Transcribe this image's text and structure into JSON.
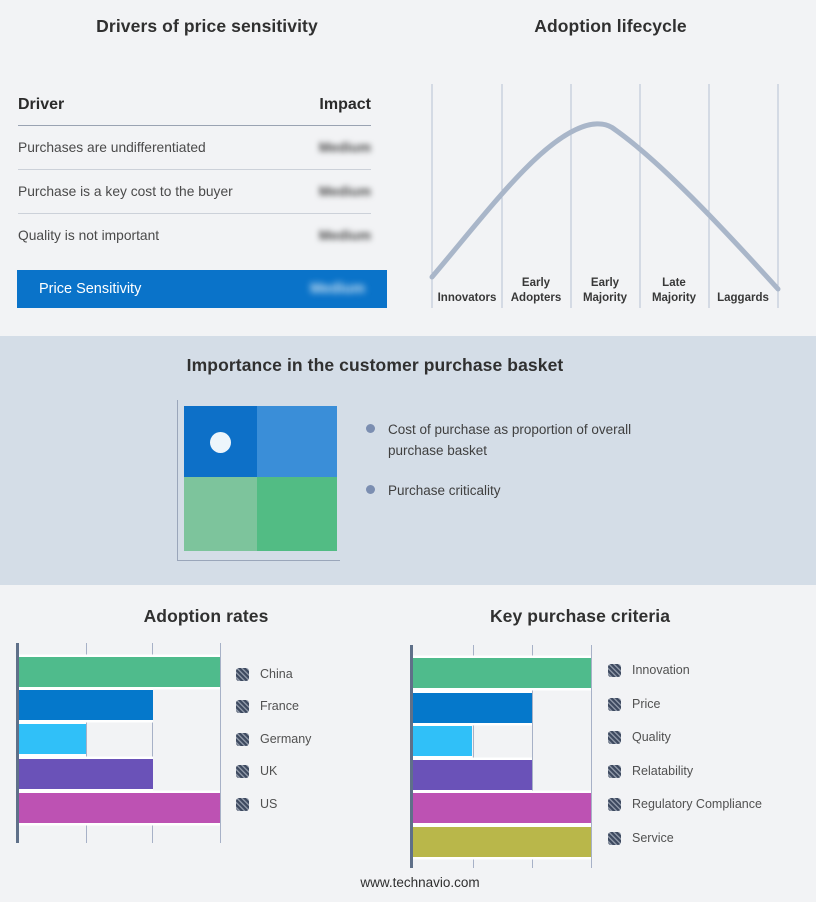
{
  "page": {
    "background": "#f2f3f5",
    "band_background": "#d4dde7",
    "footer": "www.technavio.com"
  },
  "drivers_panel": {
    "title": "Drivers of price sensitivity",
    "columns": {
      "driver": "Driver",
      "impact": "Impact"
    },
    "rows": [
      {
        "driver": "Purchases are undifferentiated",
        "impact": "Medium"
      },
      {
        "driver": "Purchase is a key cost to the buyer",
        "impact": "Medium"
      },
      {
        "driver": "Quality is not important",
        "impact": "Medium"
      }
    ],
    "highlight": {
      "driver": "Price Sensitivity",
      "impact": "Medium",
      "background": "#0a73c9"
    }
  },
  "lifecycle_labels": {
    "stages": [
      {
        "line1": "Innovators",
        "line2": ""
      },
      {
        "line1": "Early",
        "line2": "Adopters"
      },
      {
        "line1": "Early",
        "line2": "Majority"
      },
      {
        "line1": "Late",
        "line2": "Majority"
      },
      {
        "line1": "Laggards",
        "line2": ""
      }
    ]
  },
  "basket": {
    "title": "Importance in the customer purchase basket",
    "bullets": [
      "Cost of purchase as proportion of overall purchase basket",
      "Purchase criticality"
    ],
    "quadrant": {
      "top_left": "#0d70c8",
      "top_right": "#3a8ed8",
      "bottom_left": "#7dc49c",
      "bottom_right": "#52bc84",
      "dot": "#edf5fb"
    }
  },
  "chart_data": [
    {
      "type": "line",
      "title": "Adoption lifecycle",
      "curve_color": "#a9b6c9",
      "grid": true,
      "x_categories": [
        "Innovators",
        "Early Adopters",
        "Early Majority",
        "Late Majority",
        "Laggards"
      ],
      "description": "Bell-shaped adoption curve rising from Innovators, peaking within Early Majority, falling to Laggards",
      "points_stage_vs_relative_height": [
        {
          "x": 0.0,
          "y": 0.07
        },
        {
          "x": 1.0,
          "y": 0.52
        },
        {
          "x": 2.0,
          "y": 0.92
        },
        {
          "x": 2.4,
          "y": 1.0
        },
        {
          "x": 3.0,
          "y": 0.87
        },
        {
          "x": 4.0,
          "y": 0.45
        },
        {
          "x": 5.0,
          "y": 0.04
        }
      ]
    },
    {
      "type": "bar",
      "orientation": "horizontal",
      "title": "Adoption rates",
      "categories": [
        "China",
        "France",
        "Germany",
        "UK",
        "US"
      ],
      "values": [
        3,
        2,
        1,
        2,
        3
      ],
      "xlim": [
        0,
        3
      ],
      "gridlines": [
        1,
        2,
        3
      ],
      "colors": [
        "#4fbb8c",
        "#0578cb",
        "#30c0f8",
        "#6a52b8",
        "#bd52b3"
      ],
      "legend_position": "right"
    },
    {
      "type": "bar",
      "orientation": "horizontal",
      "title": "Key purchase criteria",
      "categories": [
        "Innovation",
        "Price",
        "Quality",
        "Relatability",
        "Regulatory Compliance",
        "Service"
      ],
      "values": [
        3,
        2,
        1,
        2,
        3,
        3
      ],
      "xlim": [
        0,
        3
      ],
      "gridlines": [
        1,
        2,
        3
      ],
      "colors": [
        "#4fbb8c",
        "#0578cb",
        "#30c0f8",
        "#6a52b8",
        "#bd52b3",
        "#b9b74a"
      ],
      "legend_position": "right"
    }
  ]
}
